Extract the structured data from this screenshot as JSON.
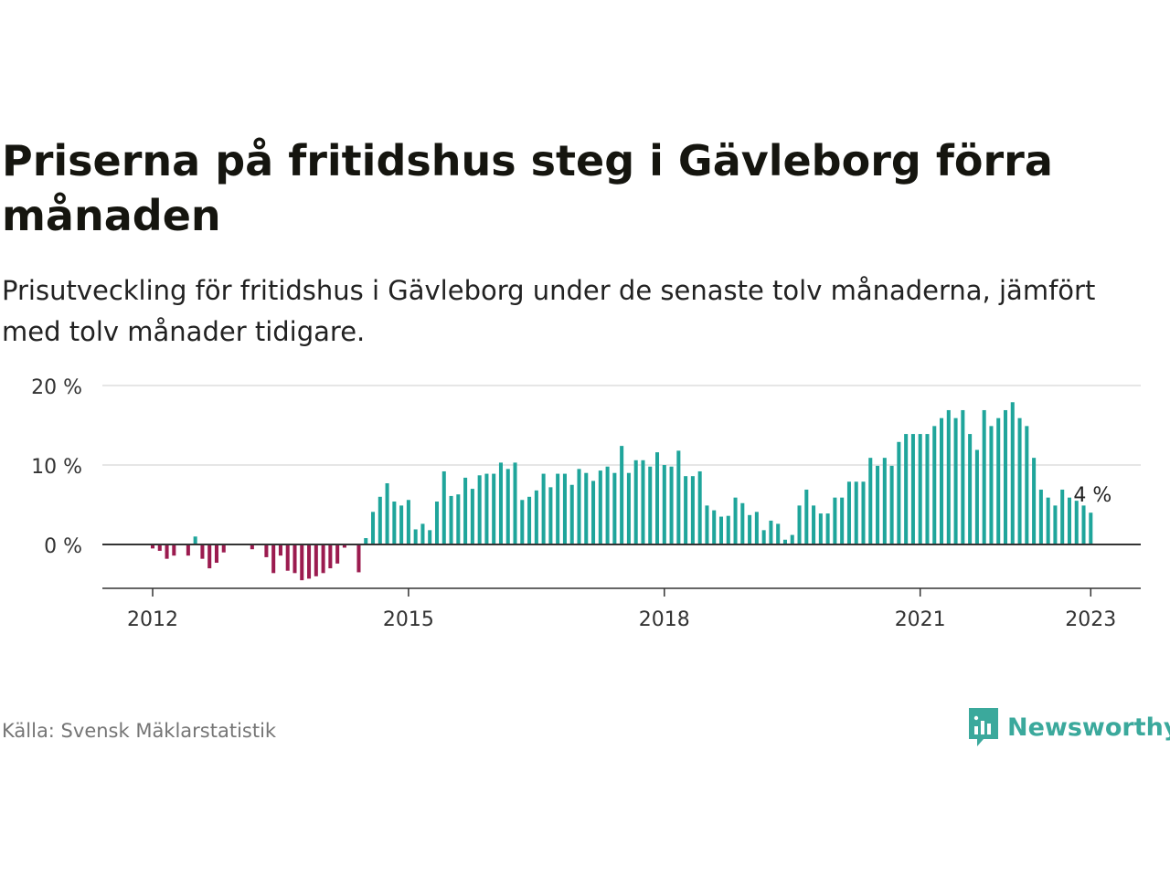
{
  "title": "Priserna på fritidshus steg i Gävleborg förra månaden",
  "subtitle": "Prisutveckling för fritidshus i Gävleborg under de senaste tolv månaderna, jämfört med tolv månader tidigare.",
  "source": "Källa: Svensk Mäklarstatistik",
  "brand": {
    "name": "Newsworthy",
    "icon": "newsworthy-logo-icon"
  },
  "colors": {
    "positive": "#1fa59b",
    "negative": "#9b1b4f",
    "axis": "#333333",
    "grid": "#dddddd",
    "brand": "#3ba99c"
  },
  "chart_data": {
    "type": "bar",
    "x_start": "2012-01",
    "frequency": "monthly",
    "ylim": [
      -5,
      20
    ],
    "yticks": [
      0,
      10,
      20
    ],
    "ytick_labels": [
      "0 %",
      "10 %",
      "20 %"
    ],
    "xtick_labels": [
      "2012",
      "2015",
      "2018",
      "2021",
      "2023"
    ],
    "xtick_dates": [
      "2012-01",
      "2015-01",
      "2018-01",
      "2021-01",
      "2023-01"
    ],
    "end_label": "4 %",
    "grid": true,
    "values": [
      -0.5,
      -0.8,
      -1.8,
      -1.4,
      0,
      -1.4,
      1.0,
      -1.8,
      -3.0,
      -2.3,
      -1.0,
      0,
      0,
      0,
      -0.6,
      0,
      -1.6,
      -3.6,
      -1.4,
      -3.3,
      -3.6,
      -4.5,
      -4.3,
      -4.0,
      -3.6,
      -3.0,
      -2.4,
      -0.4,
      0,
      -3.5,
      0.8,
      4.1,
      6.0,
      7.7,
      5.4,
      4.9,
      5.6,
      1.9,
      2.6,
      1.8,
      5.4,
      9.2,
      6.1,
      6.3,
      8.4,
      7.0,
      8.7,
      8.9,
      8.9,
      10.3,
      9.5,
      10.3,
      5.6,
      6.0,
      6.8,
      8.9,
      7.2,
      8.9,
      8.9,
      7.5,
      9.5,
      9.0,
      8.0,
      9.3,
      9.8,
      9.0,
      12.4,
      9.0,
      10.6,
      10.6,
      9.8,
      11.6,
      10.0,
      9.8,
      11.8,
      8.6,
      8.6,
      9.2,
      4.9,
      4.3,
      3.5,
      3.6,
      5.9,
      5.2,
      3.7,
      4.1,
      1.8,
      3.0,
      2.6,
      0.6,
      1.2,
      4.9,
      6.9,
      4.9,
      3.9,
      3.9,
      5.9,
      5.9,
      7.9,
      7.9,
      7.9,
      10.9,
      9.9,
      10.9,
      9.9,
      12.9,
      13.9,
      13.9,
      13.9,
      13.9,
      14.9,
      15.9,
      16.9,
      15.9,
      16.9,
      13.9,
      11.9,
      16.9,
      14.9,
      15.9,
      16.9,
      17.9,
      15.9,
      14.9,
      10.9,
      6.9,
      5.9,
      4.9,
      6.9,
      5.9,
      5.5,
      4.9,
      4.0
    ]
  }
}
